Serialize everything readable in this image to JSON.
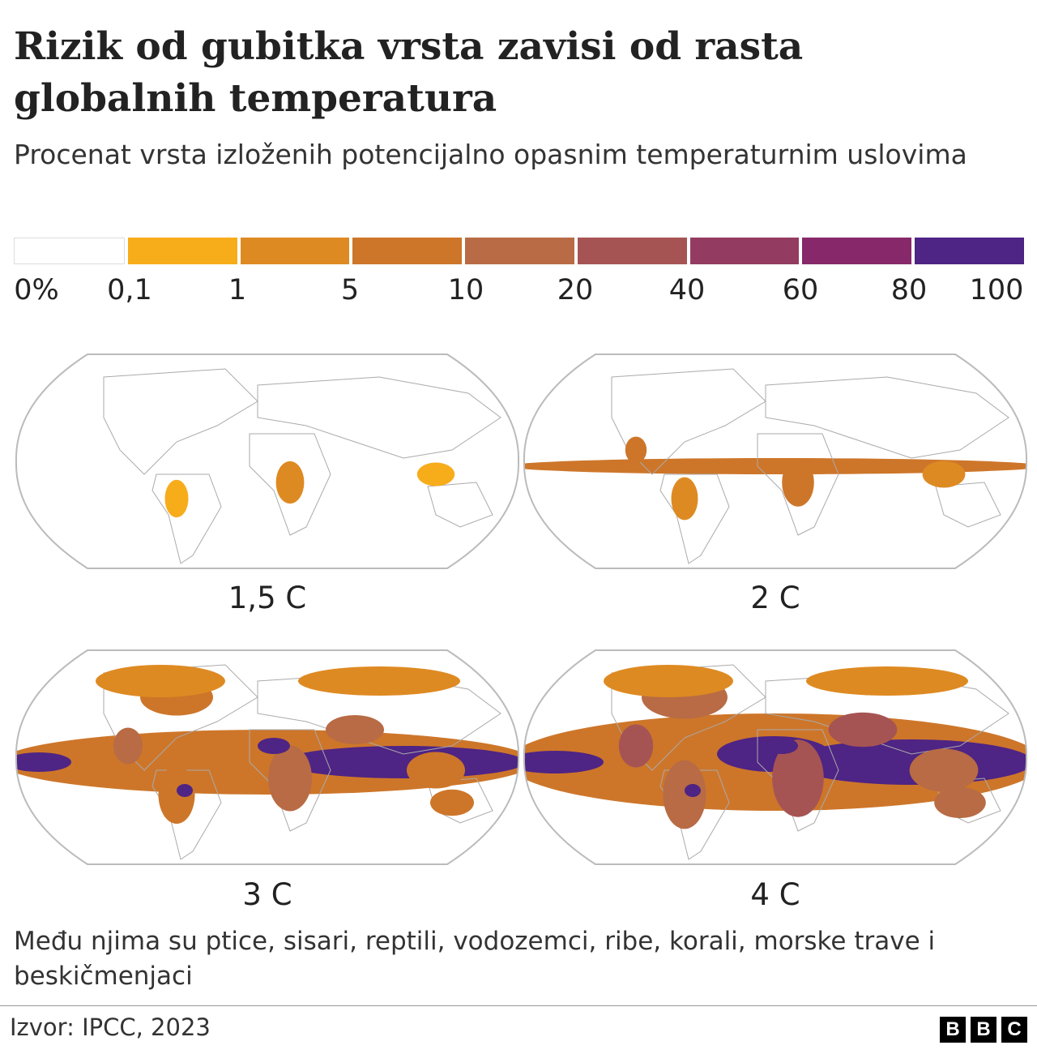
{
  "header": {
    "title": "Rizik od gubitka vrsta zavisi od rasta globalnih temperatura",
    "subtitle": "Procenat vrsta izloženih potencijalno opasnim temperaturnim uslovima"
  },
  "legend": {
    "labels": [
      "0%",
      "0,1",
      "1",
      "5",
      "10",
      "20",
      "40",
      "60",
      "80",
      "100"
    ],
    "colors": [
      "#ffffff",
      "#f7ac1a",
      "#de8a22",
      "#cd762a",
      "#b86b44",
      "#a65453",
      "#943b61",
      "#86286a",
      "#4e2484"
    ]
  },
  "maps": [
    {
      "label": "1,5 C"
    },
    {
      "label": "2 C"
    },
    {
      "label": "3 C"
    },
    {
      "label": "4 C"
    }
  ],
  "footer": {
    "note": "Među njima su ptice, sisari, reptili, vodozemci, ribe, korali, morske trave i beskičmenjaci",
    "source": "Izvor: IPCC, 2023",
    "logo": [
      "B",
      "B",
      "C"
    ]
  }
}
